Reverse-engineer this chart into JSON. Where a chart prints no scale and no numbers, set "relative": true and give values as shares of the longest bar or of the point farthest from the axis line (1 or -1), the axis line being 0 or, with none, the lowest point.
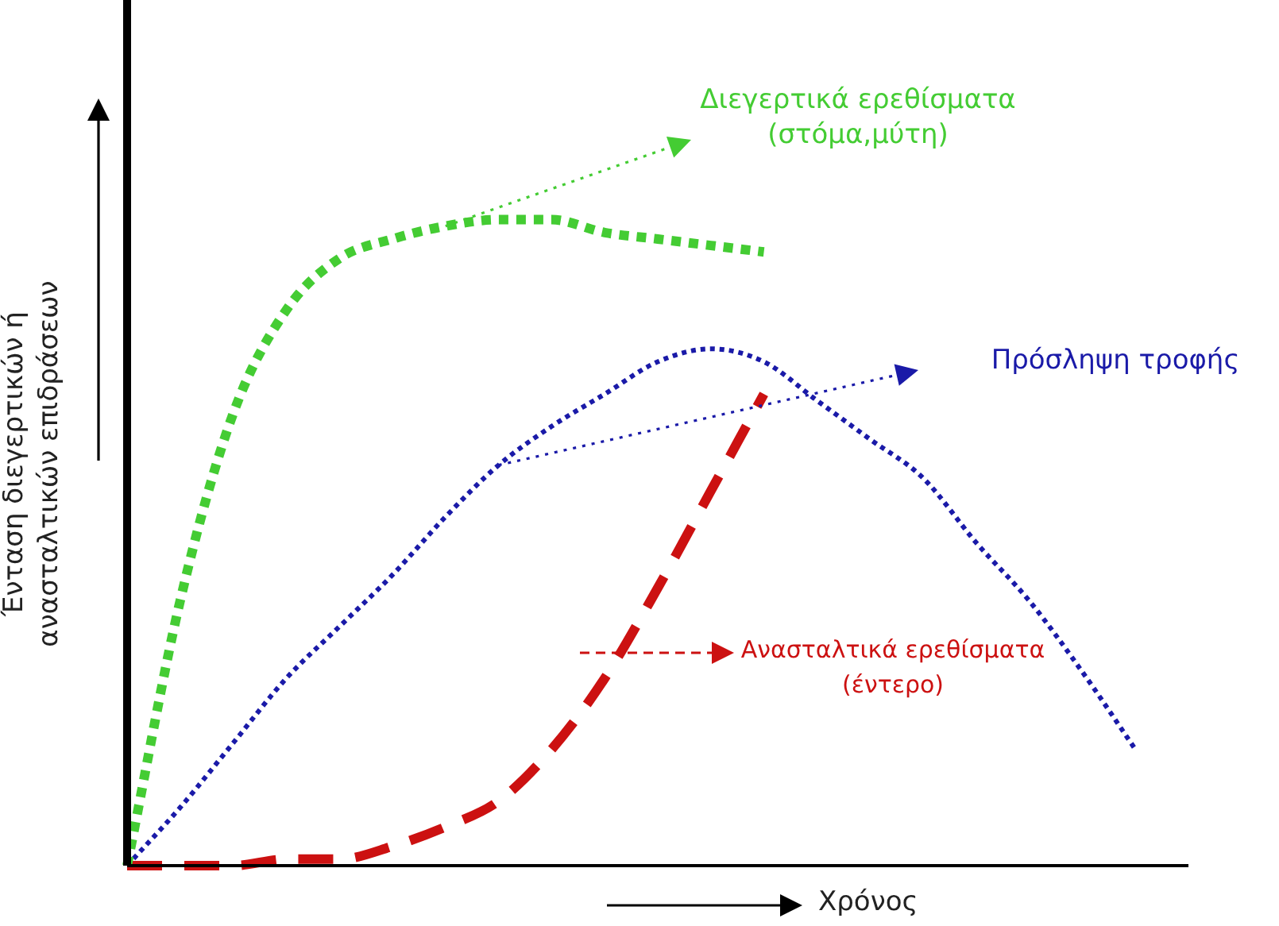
{
  "chart_data": {
    "type": "line",
    "relative": true,
    "xlabel": "Χρόνος",
    "ylabel": "Ένταση διεγερτικών ή ανασταλτικών επιδράσεων",
    "marker": "none",
    "categories": [
      null,
      null,
      null,
      null,
      null,
      null,
      null,
      null,
      null,
      null,
      null,
      null,
      null,
      null,
      null,
      null,
      null,
      null,
      null,
      null,
      null
    ],
    "series": [
      {
        "name": "Διεγερτικά ερεθίσματα (στόμα,μύτη)",
        "color": "#44cc33",
        "line_style": "dotted",
        "values": [
          0,
          0.41,
          0.7,
          0.86,
          0.94,
          0.97,
          0.99,
          1,
          1,
          0.98,
          0.97,
          0.96,
          0.95,
          null,
          null,
          null,
          null,
          null,
          null,
          null,
          null
        ]
      },
      {
        "name": "Πρόσληψη τροφής",
        "color": "#1a1aa8",
        "line_style": "dotted",
        "values": [
          0,
          0.09,
          0.19,
          0.29,
          0.37,
          0.45,
          0.54,
          0.62,
          0.68,
          0.73,
          0.78,
          0.8,
          0.78,
          0.72,
          0.66,
          0.6,
          0.5,
          0.41,
          0.3,
          0.18,
          null
        ]
      },
      {
        "name": "Ανασταλτικά ερεθίσματα (έντερο)",
        "color": "#cc1111",
        "line_style": "dashed",
        "values": [
          0,
          0,
          0,
          0.01,
          0.01,
          0.03,
          0.06,
          0.1,
          0.18,
          0.29,
          0.43,
          0.58,
          0.73,
          null,
          null,
          null,
          null,
          null,
          null,
          null,
          null
        ]
      }
    ]
  }
}
